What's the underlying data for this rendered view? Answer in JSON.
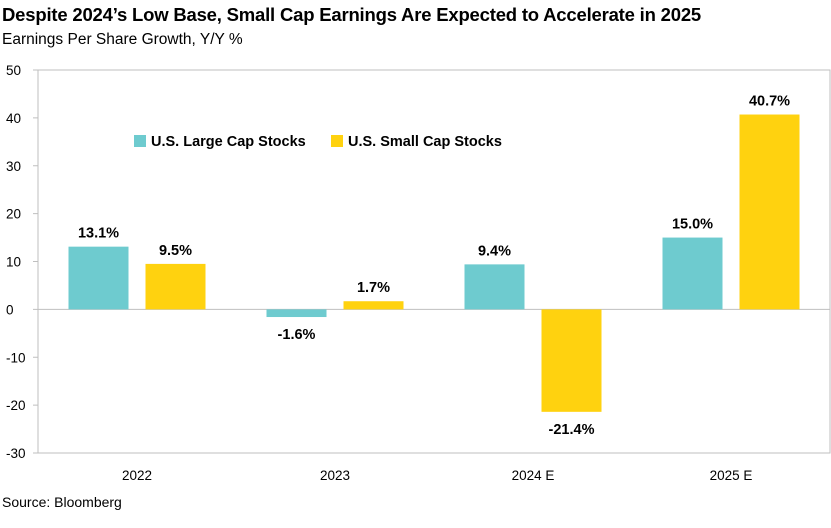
{
  "chart_data": {
    "type": "bar",
    "title": "Despite 2024’s Low Base, Small Cap Earnings Are Expected to Accelerate in 2025",
    "subtitle": "Earnings Per Share Growth, Y/Y %",
    "source": "Source: Bloomberg",
    "categories": [
      "2022",
      "2023",
      "2024 E",
      "2025 E"
    ],
    "series": [
      {
        "name": "U.S. Large Cap Stocks",
        "values": [
          13.1,
          -1.6,
          9.4,
          15.0
        ],
        "labels": [
          "13.1%",
          "-1.6%",
          "9.4%",
          "15.0%"
        ],
        "color": "#6ECBCF"
      },
      {
        "name": "U.S. Small Cap Stocks",
        "values": [
          9.5,
          1.7,
          -21.4,
          40.7
        ],
        "labels": [
          "9.5%",
          "1.7%",
          "-21.4%",
          "40.7%"
        ],
        "color": "#FFD20F"
      }
    ],
    "ylim": [
      -30,
      50
    ],
    "yticks": [
      50,
      40,
      30,
      20,
      10,
      0,
      -10,
      -20,
      -30
    ],
    "grid": false,
    "legend_position": "top-left"
  }
}
